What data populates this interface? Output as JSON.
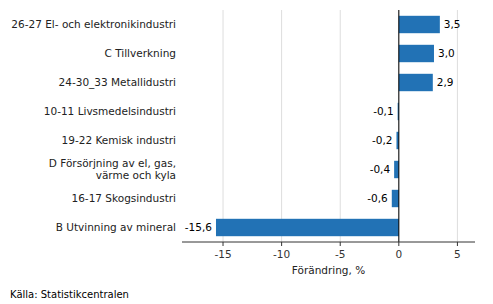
{
  "chart_data": {
    "type": "bar",
    "orientation": "horizontal",
    "categories": [
      "B Utvinning av mineral",
      "16-17 Skogsindustri",
      "D Försörjning av el, gas,\nvärme och kyla",
      "19-22 Kemisk industri",
      "10-11 Livsmedelsindustri",
      "24-30_33 Metallidustri",
      "C Tillverkning",
      "26-27 El- och elektronikindustri"
    ],
    "values": [
      -15.6,
      -0.6,
      -0.4,
      -0.2,
      -0.1,
      2.9,
      3.0,
      3.5
    ],
    "value_labels": [
      "-15,6",
      "-0,6",
      "-0,4",
      "-0,2",
      "-0,1",
      "2,9",
      "3,0",
      "3,5"
    ],
    "data_labels": true,
    "color": "#2272b5",
    "x_label": "Förändring, %",
    "annotations": [
      "Källa: Statistikcentralen"
    ],
    "xlim": [
      -18.5,
      6.5
    ],
    "xticks": [
      -15,
      -10,
      -5,
      0,
      5
    ],
    "grid": true
  }
}
